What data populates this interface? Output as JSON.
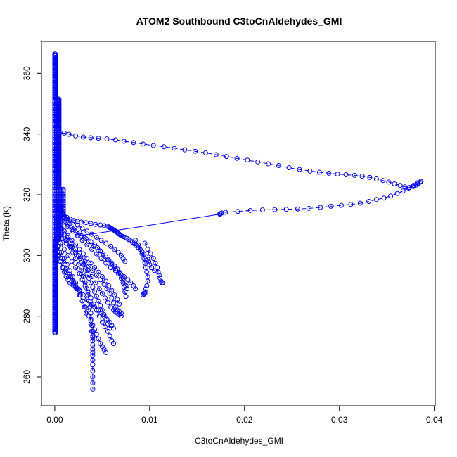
{
  "chart_data": {
    "type": "scatter",
    "title": "ATOM2 Southbound C3toCnAldehydes_GMI",
    "xlabel": "C3toCnAldehydes_GMI",
    "ylabel": "Theta (K)",
    "xlim": [
      -0.0014,
      0.0401
    ],
    "ylim": [
      250.5,
      370.5
    ],
    "x_ticks": [
      0.0,
      0.01,
      0.02,
      0.03,
      0.04
    ],
    "x_tick_labels": [
      "0.00",
      "0.01",
      "0.02",
      "0.03",
      "0.04"
    ],
    "y_ticks": [
      260,
      280,
      300,
      320,
      340,
      360
    ],
    "y_tick_labels": [
      "260",
      "280",
      "300",
      "320",
      "340",
      "360"
    ],
    "grid": false,
    "legend": "none",
    "marker": "open-circle",
    "connected": true,
    "colors": {
      "series": "#0000ff",
      "axis": "#000000",
      "background": "#ffffff"
    },
    "series": [
      {
        "x": [
          0.0002,
          0.0004,
          0.0006,
          0.0008,
          0.001,
          0.0013,
          0.0016,
          0.002,
          0.0024,
          0.0028,
          0.0033,
          0.0038,
          0.0043,
          0.0048,
          0.0052,
          0.0055,
          0.0057,
          0.0058,
          0.0059,
          0.006,
          0.0061,
          0.0062,
          0.0063,
          0.0064,
          0.0065,
          0.0066,
          0.0067,
          0.0068,
          0.0069,
          0.007,
          0.0072,
          0.0074,
          0.0076,
          0.0078,
          0.008,
          0.0082,
          0.0084,
          0.0086,
          0.0088,
          0.009,
          0.0092,
          0.0094,
          0.0096,
          0.0098,
          0.0099,
          0.01,
          0.0102,
          0.0105
        ],
        "y": [
          318,
          316,
          315,
          314,
          313,
          312.5,
          312,
          311.5,
          311.2,
          311,
          310.8,
          310.5,
          310.2,
          310,
          309.8,
          309.6,
          309.4,
          309.2,
          309,
          308.8,
          308.6,
          308.4,
          308.2,
          308,
          307.8,
          307.5,
          307.2,
          307,
          306.8,
          306.5,
          306.2,
          306,
          305.6,
          305.2,
          304.8,
          304.3,
          303.8,
          303.2,
          302.6,
          302,
          301.2,
          300.4,
          299.6,
          298.8,
          298,
          297,
          296,
          295
        ]
      },
      {
        "x": [
          0.0002,
          0.0005,
          0.0009,
          0.0013,
          0.0018,
          0.0023,
          0.0028,
          0.0033,
          0.0038,
          0.0042,
          0.0045,
          0.0048,
          0.0051,
          0.0054,
          0.0057,
          0.006,
          0.0063,
          0.0066,
          0.0068,
          0.007,
          0.0072,
          0.0074,
          0.0075,
          0.0076
        ],
        "y": [
          315,
          313,
          311,
          309.5,
          308.5,
          307.5,
          306.5,
          305.5,
          304.5,
          303.5,
          302.5,
          301.5,
          300.5,
          299.5,
          298.5,
          297.5,
          296.5,
          295.5,
          294.5,
          293.5,
          292.5,
          291,
          290,
          289
        ]
      },
      {
        "x": [
          0.0003,
          0.0006,
          0.001,
          0.0014,
          0.0018,
          0.0022,
          0.0025,
          0.0028,
          0.003,
          0.0032,
          0.0034,
          0.0036,
          0.0038,
          0.004,
          0.0042,
          0.0044,
          0.0046,
          0.0048,
          0.005,
          0.0052,
          0.0054,
          0.0056,
          0.0058
        ],
        "y": [
          312,
          310,
          308,
          306,
          304,
          302,
          300,
          298.5,
          297,
          295.5,
          294,
          292.5,
          291,
          289.5,
          288,
          286.5,
          285,
          283.5,
          282,
          280.5,
          279,
          277.5,
          276
        ]
      },
      {
        "x": [
          0.0002,
          0.0004,
          0.0007,
          0.001,
          0.0013,
          0.0016,
          0.0019,
          0.0022,
          0.0025,
          0.0028,
          0.003,
          0.0032,
          0.0034,
          0.0035,
          0.0036,
          0.0037,
          0.0038,
          0.0038,
          0.0039,
          0.0039,
          0.004
        ],
        "y": [
          313,
          311,
          309,
          307,
          305,
          303,
          301,
          299,
          297,
          295,
          293,
          291,
          289,
          287,
          285,
          283,
          281,
          279,
          277,
          275,
          273
        ]
      },
      {
        "x": [
          0.004,
          0.004,
          0.004,
          0.004,
          0.004,
          0.004,
          0.004,
          0.004,
          0.004,
          0.004,
          0.004,
          0.004,
          0.004
        ],
        "y": [
          275,
          273.5,
          272,
          270.5,
          269,
          268,
          267,
          265.5,
          264,
          262,
          260,
          258,
          256
        ]
      },
      {
        "x": [
          0.0002,
          0.0005,
          0.0008,
          0.0012,
          0.0016,
          0.0021,
          0.0026,
          0.0031,
          0.0036,
          0.0041,
          0.0046,
          0.0051,
          0.0056,
          0.006,
          0.0064,
          0.0067,
          0.007,
          0.0072,
          0.0073,
          0.0074,
          0.0075
        ],
        "y": [
          317,
          315,
          313.5,
          312,
          310.5,
          309,
          307.5,
          306,
          304.5,
          303,
          301.5,
          300,
          298.5,
          297,
          295.5,
          294,
          292.5,
          291,
          289.5,
          288,
          286.5
        ]
      },
      {
        "x": [
          0.0003,
          0.0007,
          0.0012,
          0.0017,
          0.0022,
          0.0027,
          0.0031,
          0.0035,
          0.0039,
          0.0043,
          0.0047,
          0.005,
          0.0053,
          0.0056,
          0.0059,
          0.0062,
          0.0064,
          0.0066,
          0.0068,
          0.007
        ],
        "y": [
          309,
          307,
          305,
          303,
          301,
          299,
          297,
          295,
          293,
          291,
          289,
          287.5,
          286,
          284.5,
          283,
          282,
          281.5,
          281,
          280.5,
          280
        ]
      },
      {
        "x": [
          0.0003,
          0.0006,
          0.001,
          0.0014,
          0.0018,
          0.0022,
          0.0026,
          0.0029,
          0.0032,
          0.0035,
          0.0038,
          0.0041,
          0.0044,
          0.0047,
          0.005,
          0.0053,
          0.0056,
          0.0058,
          0.006,
          0.0062
        ],
        "y": [
          306,
          304,
          302,
          300,
          298,
          296,
          294,
          292,
          290,
          288,
          286,
          284,
          282,
          280,
          278,
          276.5,
          275,
          273.5,
          272,
          271
        ]
      },
      {
        "x": [
          0.0003,
          0.0005,
          0.0008,
          0.0011,
          0.0014,
          0.0017,
          0.002,
          0.0023,
          0.0026,
          0.0029,
          0.0032,
          0.0034,
          0.0036,
          0.0038,
          0.004,
          0.0042,
          0.0044,
          0.0046,
          0.0048,
          0.005,
          0.0052,
          0.0054
        ],
        "y": [
          303,
          301,
          299,
          297,
          295,
          293,
          291,
          289,
          287,
          285,
          283,
          281.5,
          280,
          278.5,
          277,
          275.5,
          274,
          272.5,
          271,
          270,
          269,
          268
        ]
      },
      {
        "x": [
          0.0003,
          0.0006,
          0.0009,
          0.0012,
          0.0015,
          0.0018,
          0.0022,
          0.0026,
          0.003,
          0.0034,
          0.0038,
          0.0042,
          0.0046,
          0.0049,
          0.0052,
          0.0055,
          0.0058,
          0.006,
          0.0062
        ],
        "y": [
          300,
          298,
          296,
          294.5,
          293,
          291.5,
          290,
          288.5,
          287,
          285.5,
          284,
          283,
          282,
          281,
          280,
          279,
          278,
          277,
          276
        ]
      },
      {
        "x": [
          0.0003,
          0.0006,
          0.001,
          0.0014,
          0.0018,
          0.0022,
          0.0026,
          0.003,
          0.0034,
          0.0038,
          0.0042,
          0.0046,
          0.005,
          0.0054,
          0.0057,
          0.006,
          0.0063,
          0.0066,
          0.0068
        ],
        "y": [
          311,
          309.5,
          308,
          306.5,
          305,
          303.5,
          302,
          300.5,
          299,
          297.5,
          296,
          294.5,
          293,
          291.5,
          290,
          288.5,
          287,
          285.5,
          284
        ]
      },
      {
        "x": [
          0.0003,
          0.0006,
          0.001,
          0.0014,
          0.0019,
          0.0024,
          0.0029,
          0.0034,
          0.0039,
          0.0044,
          0.0049,
          0.0054,
          0.0059,
          0.0064,
          0.0069,
          0.0073,
          0.0077,
          0.008,
          0.0083,
          0.0085
        ],
        "y": [
          314,
          312.5,
          311,
          309.5,
          308,
          306.5,
          305,
          303.5,
          302,
          300.5,
          299,
          297.5,
          296,
          295,
          294,
          293,
          292,
          291,
          290,
          289
        ]
      },
      {
        "x": [
          0.0003,
          0.0006,
          0.001,
          0.0014,
          0.0019,
          0.0024,
          0.0029,
          0.0034,
          0.0039,
          0.0044,
          0.0049,
          0.0054,
          0.0059,
          0.0063,
          0.0067,
          0.007,
          0.0072,
          0.0074
        ],
        "y": [
          316,
          314.5,
          313,
          312,
          311,
          310,
          309,
          308,
          307,
          306,
          305,
          304,
          303,
          302,
          301,
          300,
          299,
          298
        ]
      },
      {
        "x": [
          0.0003,
          0.0007,
          0.0012,
          0.0017,
          0.0022,
          0.0027,
          0.0032,
          0.0036,
          0.004,
          0.0044,
          0.0048,
          0.0052,
          0.0055,
          0.0058,
          0.006,
          0.0062,
          0.0064,
          0.0066,
          0.0068,
          0.007
        ],
        "y": [
          307,
          305.5,
          304,
          302.5,
          301,
          299.5,
          298,
          296.5,
          295,
          293.5,
          292,
          290.5,
          289,
          287.5,
          286,
          284.5,
          283,
          282,
          281.5,
          281
        ]
      },
      {
        "x": [
          0.0002,
          0.0004,
          0.0007,
          0.001,
          0.0013,
          0.0016,
          0.0019,
          0.0022,
          0.0025,
          0.0027,
          0.0029,
          0.0031,
          0.0033
        ],
        "y": [
          305,
          303,
          301,
          299,
          297,
          295,
          293,
          291,
          289,
          287,
          285,
          283,
          281
        ]
      },
      {
        "x": [
          0.0002,
          0.0004,
          0.0006,
          0.0008,
          0.001,
          0.0012,
          0.0014,
          0.0016,
          0.0018,
          0.002,
          0.0022,
          0.0024,
          0.0026
        ],
        "y": [
          302,
          300,
          298,
          296,
          294.5,
          293,
          292,
          291,
          290.5,
          290,
          289.5,
          289,
          288.5
        ]
      },
      {
        "x": [
          0.0085,
          0.0088,
          0.009,
          0.0092,
          0.0094,
          0.0095,
          0.0096,
          0.0097,
          0.0098,
          0.0098,
          0.0097,
          0.0096,
          0.0095,
          0.0094,
          0.0093,
          0.0094,
          0.0095
        ],
        "y": [
          305,
          303.5,
          302,
          300.5,
          299,
          297.5,
          296,
          294.5,
          293,
          291.5,
          290,
          289,
          288,
          287.5,
          287,
          287.2,
          287.5
        ]
      },
      {
        "x": [
          0.0095,
          0.0098,
          0.0101,
          0.0104,
          0.0106,
          0.0108,
          0.0109,
          0.011,
          0.0111,
          0.0112,
          0.0113,
          0.0114
        ],
        "y": [
          304,
          302,
          300.5,
          299,
          297.5,
          296,
          294.5,
          293.5,
          292.5,
          291.5,
          291,
          291
        ]
      },
      {
        "x": [
          0.0007,
          0.0004,
          0.0002,
          0.0001,
          0.0002,
          0.0004,
          0.0008,
          0.0017,
          0.0035,
          0.0062,
          0.0088,
          0.0112,
          0.0133,
          0.0155,
          0.0175,
          0.0192,
          0.0209,
          0.0225,
          0.0242,
          0.0258,
          0.0274,
          0.029,
          0.0304,
          0.0318,
          0.033,
          0.0341,
          0.035,
          0.0358,
          0.0365,
          0.0371,
          0.0376,
          0.038,
          0.0383,
          0.0385,
          0.0385,
          0.0383,
          0.038,
          0.0377,
          0.0373,
          0.0369,
          0.0364,
          0.0358,
          0.0352,
          0.0345,
          0.0338,
          0.033,
          0.0322,
          0.0313,
          0.0304,
          0.0295,
          0.0285,
          0.0275,
          0.0264,
          0.0253,
          0.0242,
          0.023,
          0.0218,
          0.0206,
          0.0194,
          0.0182,
          0.0175,
          0.0174,
          0.0174,
          0.0173
        ],
        "y": [
          333,
          335,
          337,
          338.5,
          339.5,
          340,
          340.3,
          339.8,
          339.3,
          338.8,
          338.3,
          337.5,
          336.8,
          336,
          335.3,
          334.4,
          333.6,
          332.5,
          331.2,
          330.2,
          329.2,
          328,
          326.8,
          325.5,
          324.5,
          323.5,
          322.5,
          321.5,
          320.5,
          320,
          319.4,
          318.9,
          318.5,
          318,
          317.4,
          316.8,
          316.2,
          315.8,
          315.5,
          315.3,
          315.2,
          315.3,
          315.7,
          316.3,
          317.2,
          318.3,
          319.4,
          320.5,
          321.5,
          322.5,
          323.4,
          324.2,
          324.7,
          324.5,
          324,
          323.4,
          322.8,
          322.3,
          321.9,
          321.6,
          321.3,
          321,
          320.5,
          320
        ],
        "note_hidden": true
      }
    ],
    "loop_upper": {
      "x": [
        0.0002,
        0.0005,
        0.001,
        0.0015,
        0.0022,
        0.003,
        0.0038,
        0.0046,
        0.0055,
        0.0064,
        0.0073,
        0.0083,
        0.0093,
        0.0104,
        0.0115,
        0.0126,
        0.0137,
        0.0148,
        0.0159,
        0.017,
        0.0181,
        0.0192,
        0.0203,
        0.0214,
        0.0225,
        0.0236,
        0.0247,
        0.0258,
        0.0269,
        0.0279,
        0.0289,
        0.0298,
        0.0307,
        0.0316,
        0.0324,
        0.0332,
        0.0339,
        0.0346,
        0.0352,
        0.0358,
        0.0364,
        0.0369,
        0.0374,
        0.0378,
        0.0381,
        0.0383,
        0.0385,
        0.0386
      ],
      "y": [
        339,
        340.2,
        340.3,
        339.9,
        339.4,
        339,
        338.8,
        338.6,
        338.4,
        338.1,
        337.6,
        337.2,
        336.7,
        336.2,
        335.8,
        335.3,
        334.8,
        334.3,
        333.8,
        333.2,
        332.6,
        332,
        331.4,
        330.8,
        330.2,
        329.6,
        328.9,
        328.3,
        327.8,
        327.4,
        327.1,
        326.8,
        326.6,
        326.4,
        326.1,
        325.7,
        325.2,
        324.7,
        324.2,
        323.6,
        323.1,
        322.6,
        322.4,
        322.7,
        323.2,
        323.7,
        324.1,
        324.4
      ]
    },
    "loop_lower": {
      "x": [
        0.0386,
        0.0382,
        0.0378,
        0.0373,
        0.0367,
        0.0361,
        0.0354,
        0.0347,
        0.0339,
        0.0331,
        0.0322,
        0.0312,
        0.0302,
        0.0291,
        0.028,
        0.0268,
        0.0256,
        0.0244,
        0.0232,
        0.0219,
        0.0206,
        0.0193,
        0.018,
        0.0176,
        0.0175,
        0.0174,
        0.0174
      ],
      "y": [
        324.4,
        323.9,
        323.1,
        322.2,
        321.2,
        320.4,
        319.6,
        318.9,
        318.4,
        317.8,
        317.2,
        316.8,
        316.5,
        316.2,
        315.8,
        315.5,
        315.3,
        315.2,
        315.1,
        315,
        314.8,
        314.5,
        314.2,
        314,
        313.8,
        313.7,
        313.6
      ]
    },
    "long_line": {
      "x": [
        0.0174,
        0.0085,
        0.0042,
        0.0022
      ],
      "y": [
        313.6,
        309.2,
        307.2,
        306.4
      ]
    }
  }
}
